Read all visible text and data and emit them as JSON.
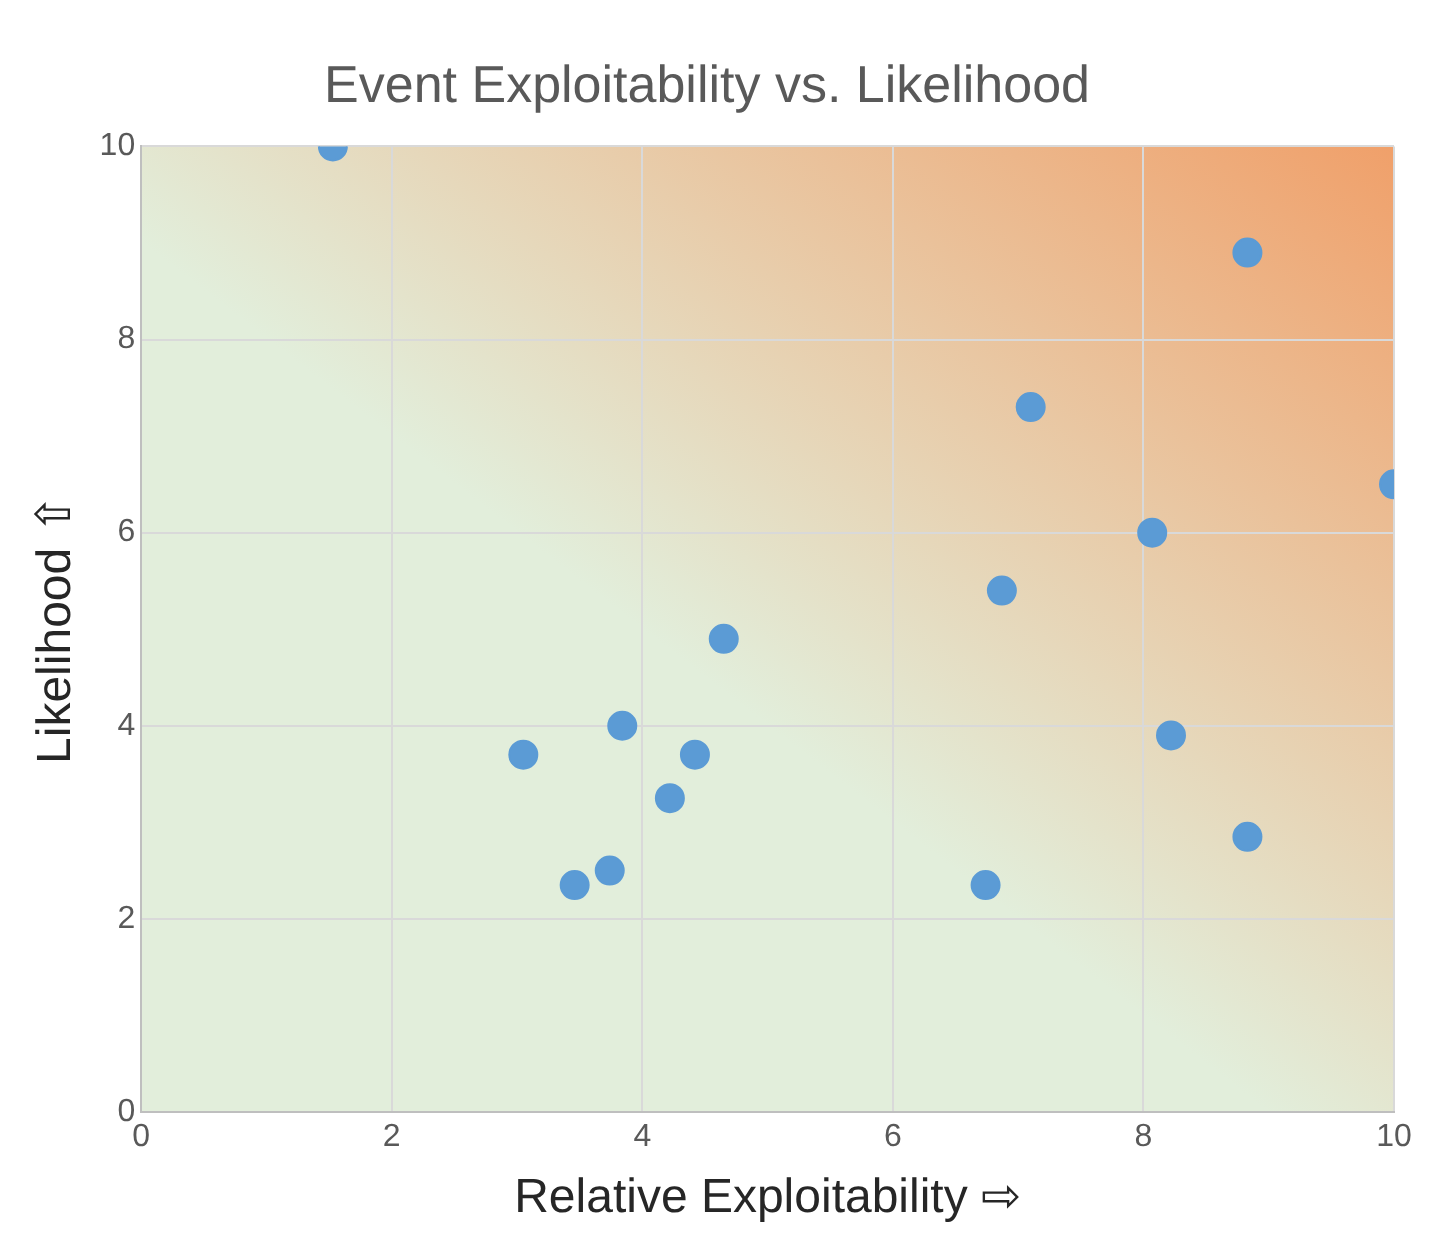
{
  "chart_data": {
    "type": "scatter",
    "title": "Event Exploitability vs. Likelihood",
    "xlabel": "Relative Exploitability ⇨",
    "ylabel": "Likelihood ⇧",
    "series": [
      {
        "color": "#5b9bd5",
        "x": [
          1.53,
          8.83,
          7.1,
          10.0,
          8.07,
          6.87,
          4.65,
          3.84,
          3.05,
          4.42,
          8.22,
          4.22,
          3.74,
          3.46,
          6.74,
          8.83
        ],
        "values": [
          10.0,
          8.9,
          7.3,
          6.5,
          6.0,
          5.4,
          4.9,
          4.0,
          3.7,
          3.7,
          3.9,
          3.25,
          2.5,
          2.35,
          2.35,
          2.85
        ]
      }
    ],
    "xlim": [
      0,
      10
    ],
    "ylim": [
      0,
      10
    ],
    "xticks": [
      0,
      2,
      4,
      6,
      8,
      10
    ],
    "yticks": [
      0,
      2,
      4,
      6,
      8,
      10
    ],
    "grid": true,
    "legend": false,
    "marker": "circle"
  }
}
